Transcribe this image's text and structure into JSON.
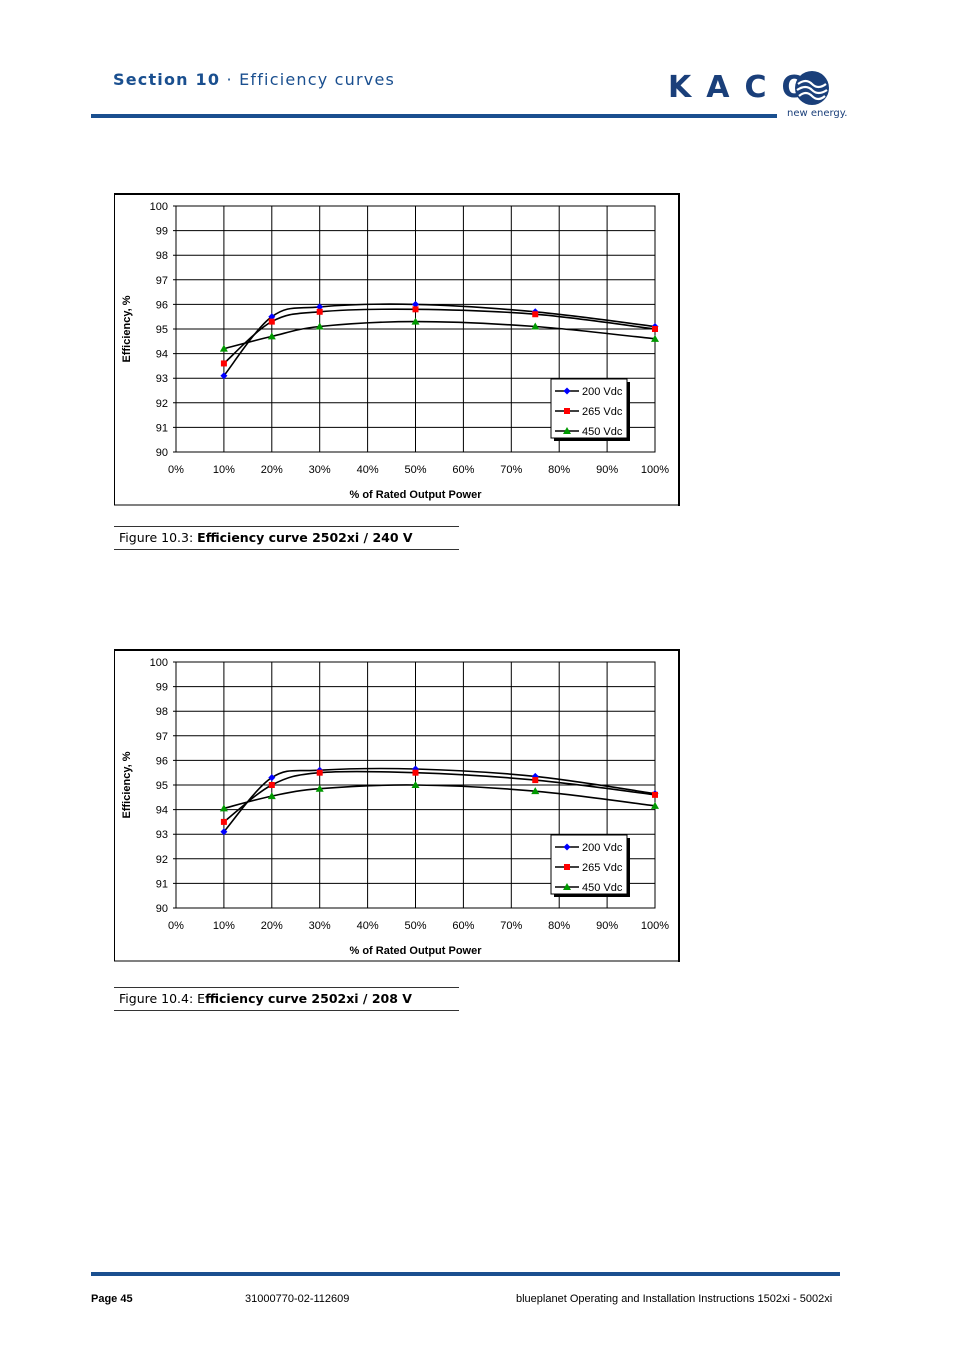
{
  "header": {
    "section_label": "Section 10",
    "separator": " · ",
    "section_title": "Efficiency curves",
    "logo_text": "KACO",
    "logo_tagline": "new energy."
  },
  "captions": [
    {
      "prefix": "Figure 10.3: ",
      "title": "Efficiency curve 2502xi / 240 V"
    },
    {
      "prefix": "Figure 10.4: E",
      "title": "fficiency curve 2502xi / 208 V"
    }
  ],
  "footer": {
    "page": "Page 45",
    "doc_number": "31000770-02-112609",
    "description": "blueplanet Operating and Installation Instructions 1502xi - 5002xi"
  },
  "colors": {
    "brand": "#1a4f8f",
    "s200": "#0000ff",
    "s265": "#ff0000",
    "s450": "#009900"
  },
  "chart_data": [
    {
      "type": "line",
      "xlabel": "% of Rated Output Power",
      "ylabel": "Efficiency, %",
      "xlim": [
        0,
        100
      ],
      "ylim": [
        90,
        100
      ],
      "xticks": [
        "0%",
        "10%",
        "20%",
        "30%",
        "40%",
        "50%",
        "60%",
        "70%",
        "80%",
        "90%",
        "100%"
      ],
      "yticks": [
        "90",
        "91",
        "92",
        "93",
        "94",
        "95",
        "96",
        "97",
        "98",
        "99",
        "100"
      ],
      "grid": true,
      "legend": "bottom-right",
      "series": [
        {
          "name": "200 Vdc",
          "marker": "diamond",
          "x": [
            10,
            20,
            30,
            50,
            75,
            100
          ],
          "y": [
            93.1,
            95.5,
            95.9,
            96.0,
            95.7,
            95.1
          ]
        },
        {
          "name": "265 Vdc",
          "marker": "square",
          "x": [
            10,
            20,
            30,
            50,
            75,
            100
          ],
          "y": [
            93.6,
            95.3,
            95.7,
            95.8,
            95.6,
            95.0
          ]
        },
        {
          "name": "450 Vdc",
          "marker": "triangle",
          "x": [
            10,
            20,
            30,
            50,
            75,
            100
          ],
          "y": [
            94.2,
            94.7,
            95.1,
            95.3,
            95.1,
            94.6
          ]
        }
      ]
    },
    {
      "type": "line",
      "xlabel": "% of Rated Output Power",
      "ylabel": "Efficiency, %",
      "xlim": [
        0,
        100
      ],
      "ylim": [
        90,
        100
      ],
      "xticks": [
        "0%",
        "10%",
        "20%",
        "30%",
        "40%",
        "50%",
        "60%",
        "70%",
        "80%",
        "90%",
        "100%"
      ],
      "yticks": [
        "90",
        "91",
        "92",
        "93",
        "94",
        "95",
        "96",
        "97",
        "98",
        "99",
        "100"
      ],
      "grid": true,
      "legend": "bottom-right",
      "series": [
        {
          "name": "200 Vdc",
          "marker": "diamond",
          "x": [
            10,
            20,
            30,
            50,
            75,
            100
          ],
          "y": [
            93.1,
            95.3,
            95.6,
            95.65,
            95.35,
            94.65
          ]
        },
        {
          "name": "265 Vdc",
          "marker": "square",
          "x": [
            10,
            20,
            30,
            50,
            75,
            100
          ],
          "y": [
            93.5,
            95.0,
            95.5,
            95.5,
            95.2,
            94.6
          ]
        },
        {
          "name": "450 Vdc",
          "marker": "triangle",
          "x": [
            10,
            20,
            30,
            50,
            75,
            100
          ],
          "y": [
            94.05,
            94.55,
            94.85,
            95.0,
            94.75,
            94.15
          ]
        }
      ]
    }
  ]
}
